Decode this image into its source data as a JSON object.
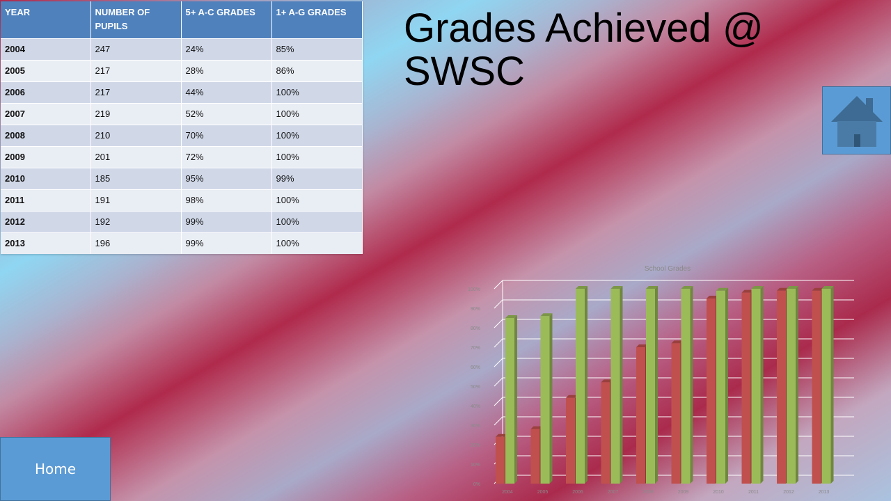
{
  "slide": {
    "title": "Grades Achieved @ SWSC",
    "home_label": "Home"
  },
  "table": {
    "headers": [
      "YEAR",
      "NUMBER OF PUPILS",
      "5+ A-C GRADES",
      "1+ A-G GRADES"
    ],
    "rows": [
      [
        "2004",
        "247",
        "24%",
        "85%"
      ],
      [
        "2005",
        "217",
        "28%",
        "86%"
      ],
      [
        "2006",
        "217",
        "44%",
        "100%"
      ],
      [
        "2007",
        "219",
        "52%",
        "100%"
      ],
      [
        "2008",
        "210",
        "70%",
        "100%"
      ],
      [
        "2009",
        "201",
        "72%",
        "100%"
      ],
      [
        "2010",
        "185",
        "95%",
        "99%"
      ],
      [
        "2011",
        "191",
        "98%",
        "100%"
      ],
      [
        "2012",
        "192",
        "99%",
        "100%"
      ],
      [
        "2013",
        "196",
        "99%",
        "100%"
      ]
    ]
  },
  "chart_data": {
    "type": "bar",
    "title": "School Grades",
    "categories": [
      "2004",
      "2005",
      "2006",
      "2007",
      "2008",
      "2009",
      "2010",
      "2011",
      "2012",
      "2013"
    ],
    "series": [
      {
        "values": [
          24,
          28,
          44,
          52,
          70,
          72,
          95,
          98,
          99,
          99
        ],
        "color": "#c0504d"
      },
      {
        "values": [
          85,
          86,
          100,
          100,
          100,
          100,
          99,
          100,
          100,
          100
        ],
        "color": "#9bbb59"
      }
    ],
    "ylim": [
      0,
      100
    ],
    "yticks": [
      "0%",
      "10%",
      "20%",
      "30%",
      "40%",
      "50%",
      "60%",
      "70%",
      "80%",
      "90%",
      "100%"
    ],
    "grid": true
  },
  "colors": {
    "header_blue": "#4f81bd",
    "button_blue": "#5b9bd5",
    "series_red": "#c0504d",
    "series_green": "#9bbb59"
  },
  "icons": {
    "home_icon_button": "house-icon"
  }
}
